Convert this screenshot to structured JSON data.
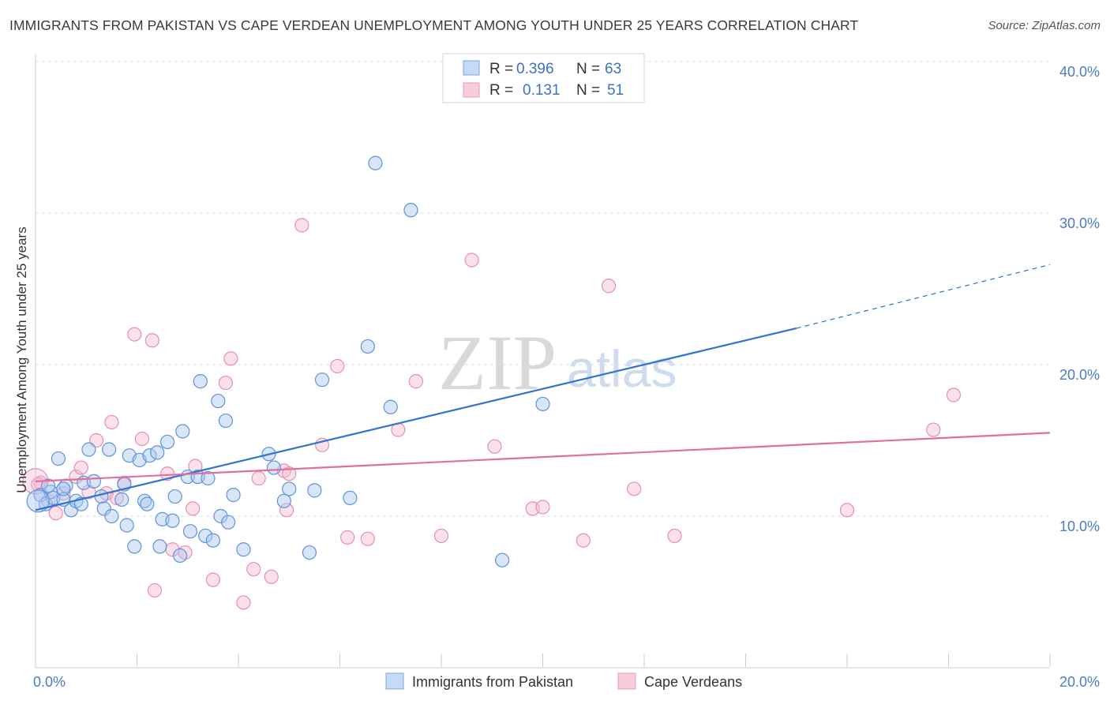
{
  "title": "IMMIGRANTS FROM PAKISTAN VS CAPE VERDEAN UNEMPLOYMENT AMONG YOUTH UNDER 25 YEARS CORRELATION CHART",
  "source": "Source: ZipAtlas.com",
  "watermark": {
    "zip": "ZIP",
    "atlas": "atlas"
  },
  "legend": {
    "r_label": "R =",
    "n_label": "N =",
    "rows": [
      {
        "r": "0.396",
        "n": "63"
      },
      {
        "r": "0.131",
        "n": "51"
      }
    ]
  },
  "bottom_legend": [
    "Immigrants from Pakistan",
    "Cape Verdeans"
  ],
  "chart_data": {
    "type": "scatter",
    "title": "IMMIGRANTS FROM PAKISTAN VS CAPE VERDEAN UNEMPLOYMENT AMONG YOUTH UNDER 25 YEARS CORRELATION CHART",
    "xlabel": "",
    "ylabel": "Unemployment Among Youth under 25 years",
    "xlim": [
      0,
      20
    ],
    "ylim": [
      0,
      40
    ],
    "x_tick_labels": [
      "0.0%",
      "20.0%"
    ],
    "y_ticks": [
      10,
      20,
      30,
      40
    ],
    "y_tick_labels": [
      "10.0%",
      "20.0%",
      "30.0%",
      "40.0%"
    ],
    "grid": true,
    "legend_position": "top-center",
    "colors": {
      "pakistan": "#4a86d8",
      "cape_verdeans": "#e97aa3",
      "pakistan_line": "#2f74cf",
      "cape_line": "#e0709a"
    },
    "series": [
      {
        "name": "Immigrants from Pakistan",
        "color": "#4a86d8",
        "trend": {
          "x": [
            0,
            15
          ],
          "y": [
            10.4,
            22.4
          ],
          "dashed_to": [
            20,
            26.6
          ]
        },
        "points": [
          [
            0.1,
            11.4
          ],
          [
            0.2,
            10.8
          ],
          [
            0.3,
            11.6
          ],
          [
            0.35,
            11.2
          ],
          [
            0.45,
            13.8
          ],
          [
            0.55,
            11.1
          ],
          [
            0.6,
            12.0
          ],
          [
            0.7,
            10.4
          ],
          [
            0.8,
            11.0
          ],
          [
            0.9,
            10.8
          ],
          [
            0.95,
            12.2
          ],
          [
            1.05,
            14.4
          ],
          [
            1.15,
            12.3
          ],
          [
            1.3,
            11.3
          ],
          [
            1.35,
            10.5
          ],
          [
            1.45,
            14.4
          ],
          [
            1.5,
            10.0
          ],
          [
            1.7,
            11.1
          ],
          [
            1.75,
            12.1
          ],
          [
            1.8,
            9.4
          ],
          [
            1.85,
            14.0
          ],
          [
            1.95,
            8.0
          ],
          [
            2.05,
            13.7
          ],
          [
            2.15,
            11.0
          ],
          [
            2.2,
            10.8
          ],
          [
            2.25,
            14.0
          ],
          [
            2.4,
            14.2
          ],
          [
            2.45,
            8.0
          ],
          [
            2.5,
            9.8
          ],
          [
            2.6,
            14.9
          ],
          [
            2.7,
            9.7
          ],
          [
            2.75,
            11.3
          ],
          [
            2.85,
            7.4
          ],
          [
            2.9,
            15.6
          ],
          [
            3.0,
            12.6
          ],
          [
            3.05,
            9.0
          ],
          [
            3.2,
            12.6
          ],
          [
            3.25,
            18.9
          ],
          [
            3.35,
            8.7
          ],
          [
            3.4,
            12.5
          ],
          [
            3.5,
            8.4
          ],
          [
            3.6,
            17.6
          ],
          [
            3.65,
            10.0
          ],
          [
            3.75,
            16.3
          ],
          [
            3.8,
            9.6
          ],
          [
            3.9,
            11.4
          ],
          [
            4.1,
            7.8
          ],
          [
            4.6,
            14.1
          ],
          [
            4.7,
            13.2
          ],
          [
            4.9,
            11.0
          ],
          [
            5.0,
            11.8
          ],
          [
            5.4,
            7.6
          ],
          [
            5.5,
            11.7
          ],
          [
            5.65,
            19.0
          ],
          [
            6.2,
            11.2
          ],
          [
            6.55,
            21.2
          ],
          [
            6.7,
            33.3
          ],
          [
            7.0,
            17.2
          ],
          [
            7.4,
            30.2
          ],
          [
            9.2,
            7.1
          ],
          [
            10.0,
            17.4
          ],
          [
            0.55,
            11.8
          ],
          [
            0.25,
            12.0
          ]
        ]
      },
      {
        "name": "Cape Verdeans",
        "color": "#e97aa3",
        "trend": {
          "x": [
            0,
            20
          ],
          "y": [
            12.3,
            15.5
          ]
        },
        "points": [
          [
            0.1,
            12.2
          ],
          [
            0.25,
            11.0
          ],
          [
            0.4,
            10.2
          ],
          [
            0.55,
            11.5
          ],
          [
            0.8,
            12.6
          ],
          [
            0.9,
            13.2
          ],
          [
            1.05,
            11.6
          ],
          [
            1.2,
            15.0
          ],
          [
            1.4,
            11.5
          ],
          [
            1.5,
            16.2
          ],
          [
            1.6,
            11.2
          ],
          [
            1.75,
            12.2
          ],
          [
            1.95,
            22.0
          ],
          [
            2.1,
            15.1
          ],
          [
            2.3,
            21.6
          ],
          [
            2.35,
            5.1
          ],
          [
            2.6,
            12.8
          ],
          [
            2.7,
            7.8
          ],
          [
            2.95,
            7.6
          ],
          [
            3.1,
            10.5
          ],
          [
            3.15,
            13.3
          ],
          [
            3.5,
            5.8
          ],
          [
            3.75,
            18.8
          ],
          [
            3.85,
            20.4
          ],
          [
            4.1,
            4.3
          ],
          [
            4.3,
            6.5
          ],
          [
            4.4,
            12.5
          ],
          [
            4.65,
            6.0
          ],
          [
            4.9,
            13.0
          ],
          [
            5.0,
            12.8
          ],
          [
            4.95,
            10.4
          ],
          [
            5.25,
            29.2
          ],
          [
            5.65,
            14.7
          ],
          [
            5.95,
            19.9
          ],
          [
            6.15,
            8.6
          ],
          [
            6.55,
            8.5
          ],
          [
            7.15,
            15.7
          ],
          [
            7.5,
            18.9
          ],
          [
            8.0,
            8.7
          ],
          [
            8.6,
            26.9
          ],
          [
            9.05,
            14.6
          ],
          [
            9.8,
            10.5
          ],
          [
            10.0,
            10.6
          ],
          [
            10.8,
            8.4
          ],
          [
            11.3,
            25.2
          ],
          [
            11.8,
            11.8
          ],
          [
            12.6,
            8.7
          ],
          [
            16.0,
            10.4
          ],
          [
            17.7,
            15.7
          ],
          [
            18.1,
            18.0
          ],
          [
            0.05,
            12.1
          ]
        ]
      }
    ]
  }
}
